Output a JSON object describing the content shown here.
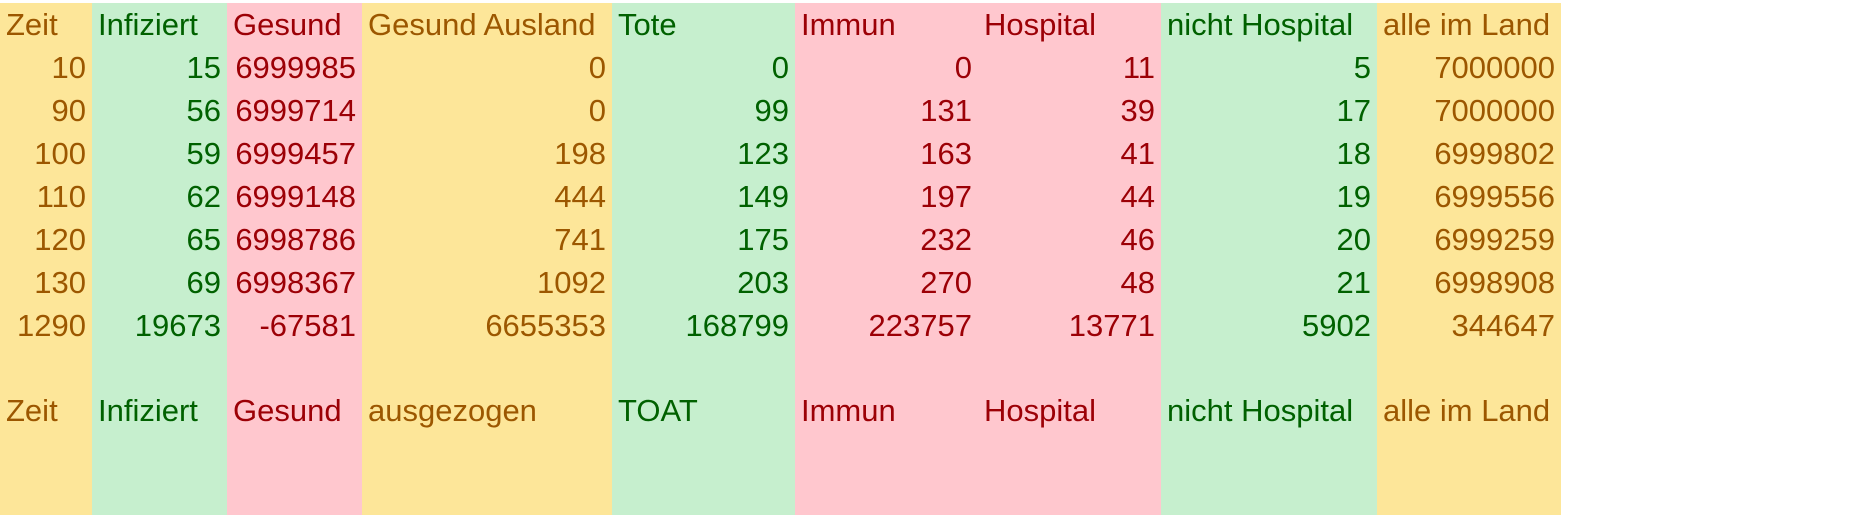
{
  "header": [
    "Zeit",
    "Infiziert",
    "Gesund",
    "Gesund Ausland",
    "Tote",
    "Immun",
    "Hospital",
    "nicht Hospital",
    "alle im Land"
  ],
  "rows": [
    [
      "10",
      "15",
      "6999985",
      "0",
      "0",
      "0",
      "11",
      "5",
      "7000000"
    ],
    [
      "90",
      "56",
      "6999714",
      "0",
      "99",
      "131",
      "39",
      "17",
      "7000000"
    ],
    [
      "100",
      "59",
      "6999457",
      "198",
      "123",
      "163",
      "41",
      "18",
      "6999802"
    ],
    [
      "110",
      "62",
      "6999148",
      "444",
      "149",
      "197",
      "44",
      "19",
      "6999556"
    ],
    [
      "120",
      "65",
      "6998786",
      "741",
      "175",
      "232",
      "46",
      "20",
      "6999259"
    ],
    [
      "130",
      "69",
      "6998367",
      "1092",
      "203",
      "270",
      "48",
      "21",
      "6998908"
    ],
    [
      "1290",
      "19673",
      "-67581",
      "6655353",
      "168799",
      "223757",
      "13771",
      "5902",
      "344647"
    ]
  ],
  "footer": [
    "Zeit",
    "Infiziert",
    "Gesund",
    "ausgezogen",
    "TOAT",
    "Immun",
    "Hospital",
    "nicht Hospital",
    "alle im Land"
  ],
  "colors": {
    "yellow_fill": "#fde699",
    "green_fill": "#c6efce",
    "red_fill": "#ffc7ce",
    "yellow_text": "#9c5700",
    "green_text": "#006100",
    "red_text": "#9c0006"
  }
}
